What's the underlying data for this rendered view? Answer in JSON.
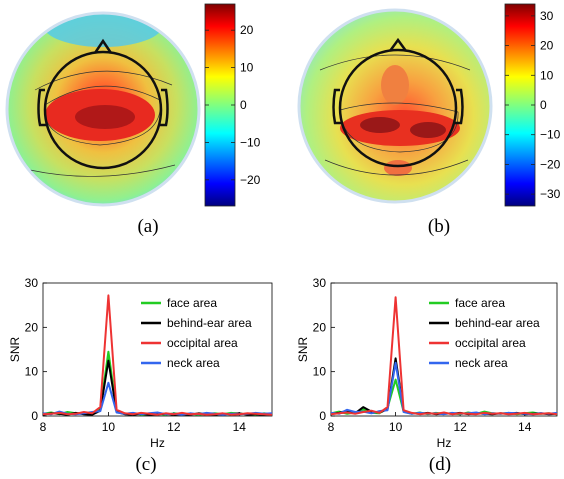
{
  "figure": {
    "captions": [
      "(a)",
      "(b)",
      "(c)",
      "(d)"
    ],
    "colors": {
      "face": "#22cc22",
      "behind_ear": "#000000",
      "occipital": "#ee3333",
      "neck": "#3366ee"
    }
  },
  "chart_data": [
    {
      "panel": "(a)",
      "type": "heatmap",
      "title": "",
      "colorbar": {
        "ticks": [
          20,
          10,
          0,
          -10,
          -20
        ],
        "range": [
          -27,
          27
        ],
        "colormap": "jet"
      },
      "description_visible": "scalp topography with head outline, ears and nose; maximum over central-parietal region"
    },
    {
      "panel": "(b)",
      "type": "heatmap",
      "title": "",
      "colorbar": {
        "ticks": [
          30,
          20,
          10,
          0,
          -10,
          -20,
          -30
        ],
        "range": [
          -34,
          34
        ],
        "colormap": "jet"
      },
      "description_visible": "scalp topography with head outline; maximum over occipital region"
    },
    {
      "panel": "(c)",
      "type": "line",
      "title": "",
      "xlabel": "Hz",
      "ylabel": "SNR",
      "xlim": [
        8,
        15
      ],
      "ylim": [
        0,
        30
      ],
      "xticks": [
        8,
        10,
        12,
        14
      ],
      "yticks": [
        0,
        10,
        20,
        30
      ],
      "legend_position": "top-right",
      "x": [
        8.0,
        8.25,
        8.5,
        8.75,
        9.0,
        9.25,
        9.5,
        9.75,
        10.0,
        10.25,
        10.5,
        10.75,
        11.0,
        11.25,
        11.5,
        11.75,
        12.0,
        12.25,
        12.5,
        12.75,
        13.0,
        13.25,
        13.5,
        13.75,
        14.0,
        14.25,
        14.5,
        14.75,
        15.0
      ],
      "series": [
        {
          "name": "face area",
          "key": "face",
          "values": [
            0.5,
            0.8,
            0.4,
            0.9,
            0.6,
            0.7,
            0.4,
            1.5,
            14.5,
            1.2,
            0.5,
            0.6,
            0.3,
            0.4,
            0.5,
            0.3,
            0.6,
            0.4,
            0.5,
            0.3,
            0.5,
            0.6,
            0.4,
            0.7,
            0.5,
            0.4,
            0.3,
            0.6,
            0.4
          ]
        },
        {
          "name": "behind-ear area",
          "key": "behind_ear",
          "values": [
            0.3,
            0.6,
            0.5,
            0.3,
            0.7,
            0.4,
            0.3,
            1.2,
            12.5,
            0.9,
            0.4,
            0.3,
            0.5,
            0.3,
            0.4,
            0.5,
            0.3,
            0.4,
            0.3,
            0.6,
            0.4,
            0.3,
            0.5,
            0.4,
            0.6,
            0.3,
            0.4,
            0.3,
            0.5
          ]
        },
        {
          "name": "occipital area",
          "key": "occipital",
          "values": [
            0.4,
            0.5,
            0.7,
            0.4,
            0.5,
            0.9,
            0.6,
            2.0,
            27.2,
            1.4,
            0.6,
            0.4,
            0.7,
            0.5,
            0.3,
            0.6,
            0.4,
            0.7,
            0.4,
            0.5,
            0.3,
            0.4,
            0.6,
            0.3,
            0.4,
            0.6,
            0.5,
            0.4,
            0.3
          ]
        },
        {
          "name": "neck area",
          "key": "neck",
          "values": [
            0.6,
            0.4,
            1.0,
            0.5,
            0.4,
            0.6,
            0.9,
            1.1,
            7.5,
            0.8,
            0.5,
            0.7,
            0.4,
            0.6,
            0.8,
            0.4,
            0.5,
            0.3,
            0.6,
            0.4,
            0.7,
            0.5,
            0.3,
            0.5,
            0.4,
            0.5,
            0.7,
            0.5,
            0.6
          ]
        }
      ]
    },
    {
      "panel": "(d)",
      "type": "line",
      "title": "",
      "xlabel": "Hz",
      "ylabel": "SNR",
      "xlim": [
        8,
        15
      ],
      "ylim": [
        0,
        30
      ],
      "xticks": [
        8,
        10,
        12,
        14
      ],
      "yticks": [
        0,
        10,
        20,
        30
      ],
      "legend_position": "top-right",
      "x": [
        8.0,
        8.25,
        8.5,
        8.75,
        9.0,
        9.25,
        9.5,
        9.75,
        10.0,
        10.25,
        10.5,
        10.75,
        11.0,
        11.25,
        11.5,
        11.75,
        12.0,
        12.25,
        12.5,
        12.75,
        13.0,
        13.25,
        13.5,
        13.75,
        14.0,
        14.25,
        14.5,
        14.75,
        15.0
      ],
      "series": [
        {
          "name": "face area",
          "key": "face",
          "values": [
            0.6,
            1.0,
            0.5,
            0.8,
            1.5,
            0.7,
            0.6,
            1.8,
            8.2,
            1.0,
            0.5,
            0.8,
            0.4,
            0.7,
            0.5,
            0.6,
            0.4,
            0.8,
            0.5,
            1.0,
            0.6,
            0.5,
            0.7,
            0.4,
            0.6,
            0.8,
            0.5,
            0.6,
            0.4
          ]
        },
        {
          "name": "behind-ear area",
          "key": "behind_ear",
          "values": [
            0.5,
            0.7,
            1.2,
            0.6,
            2.0,
            1.0,
            0.8,
            1.5,
            13.0,
            1.1,
            0.6,
            0.5,
            0.7,
            0.4,
            0.6,
            0.5,
            0.7,
            0.4,
            0.6,
            0.5,
            0.4,
            0.6,
            0.5,
            0.7,
            0.4,
            0.5,
            0.6,
            0.4,
            0.5
          ]
        },
        {
          "name": "occipital area",
          "key": "occipital",
          "values": [
            0.4,
            0.6,
            0.8,
            0.5,
            0.9,
            1.2,
            0.7,
            2.0,
            26.8,
            1.3,
            0.7,
            0.4,
            0.6,
            0.5,
            0.8,
            0.4,
            0.6,
            0.5,
            0.4,
            0.7,
            0.5,
            0.6,
            0.4,
            0.5,
            0.7,
            0.4,
            0.5,
            0.6,
            0.4
          ]
        },
        {
          "name": "neck area",
          "key": "neck",
          "values": [
            0.7,
            0.5,
            1.4,
            0.9,
            1.0,
            0.6,
            1.1,
            1.3,
            12.0,
            0.9,
            0.5,
            0.7,
            0.5,
            0.6,
            0.4,
            0.7,
            0.5,
            0.6,
            0.8,
            0.4,
            0.6,
            0.5,
            0.7,
            0.6,
            0.5,
            0.4,
            0.6,
            0.5,
            0.7
          ]
        }
      ]
    }
  ]
}
